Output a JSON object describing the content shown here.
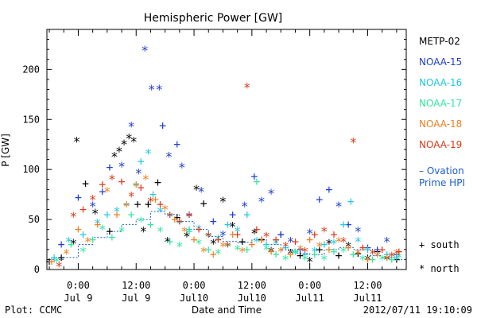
{
  "chart_data": {
    "type": "scatter",
    "title": "Hemispheric Power [GW]",
    "ylabel": "P [GW]",
    "xlabel": "Date and Time",
    "ylim": [
      0,
      240
    ],
    "yticks": [
      0,
      50,
      100,
      150,
      200
    ],
    "xlim_hours": [
      -6.5,
      68
    ],
    "x_ticks": [
      {
        "h": 0,
        "top": "0:00",
        "bottom": "Jul 9"
      },
      {
        "h": 12,
        "top": "12:00",
        "bottom": "Jul 9"
      },
      {
        "h": 24,
        "top": "0:00",
        "bottom": "Jul10"
      },
      {
        "h": 36,
        "top": "12:00",
        "bottom": "Jul10"
      },
      {
        "h": 48,
        "top": "0:00",
        "bottom": "Jul11"
      },
      {
        "h": 60,
        "top": "12:00",
        "bottom": "Jul11"
      }
    ],
    "footer_left": "Plot: CCMC",
    "footer_right": "2012/07/11 19:10:09",
    "legend": {
      "placement": "right",
      "satellites": [
        {
          "name": "METP-02",
          "color": "#000000"
        },
        {
          "name": "NOAA-15",
          "color": "#1f3fd0"
        },
        {
          "name": "NOAA-16",
          "color": "#20c8e0"
        },
        {
          "name": "NOAA-17",
          "color": "#30e8a0"
        },
        {
          "name": "NOAA-18",
          "color": "#f08020"
        },
        {
          "name": "NOAA-19",
          "color": "#e03818"
        }
      ],
      "ovation_label_1": "Ovation",
      "ovation_label_2": "Prime HPI",
      "ovation_color": "#1c5fd0",
      "south_label": "south",
      "north_label": "north"
    },
    "series": [
      {
        "name": "METP-02",
        "points": [
          [
            -6,
            8,
            "+"
          ],
          [
            -3.5,
            12,
            "+"
          ],
          [
            -1,
            28,
            "*"
          ],
          [
            -0.3,
            130,
            "*"
          ],
          [
            1.5,
            86,
            "+"
          ],
          [
            3.5,
            58,
            "*"
          ],
          [
            6.5,
            38,
            "+"
          ],
          [
            7.5,
            115,
            "*"
          ],
          [
            8.5,
            120,
            "*"
          ],
          [
            9.5,
            127,
            "*"
          ],
          [
            10.5,
            133,
            "*"
          ],
          [
            11.5,
            130,
            "*"
          ],
          [
            12.3,
            65,
            "+"
          ],
          [
            13.5,
            40,
            "*"
          ],
          [
            14.5,
            65,
            "+"
          ],
          [
            16.5,
            87,
            "+"
          ],
          [
            18.5,
            30,
            "*"
          ],
          [
            20.5,
            52,
            "+"
          ],
          [
            22.5,
            35,
            "*"
          ],
          [
            24.5,
            82,
            "*"
          ],
          [
            26,
            66,
            "+"
          ],
          [
            28,
            28,
            "*"
          ],
          [
            30,
            70,
            "*"
          ],
          [
            32,
            45,
            "*"
          ],
          [
            34,
            28,
            "+"
          ],
          [
            36.5,
            38,
            "*"
          ],
          [
            38,
            30,
            "+"
          ],
          [
            40,
            20,
            "*"
          ],
          [
            42,
            35,
            "+"
          ],
          [
            44,
            18,
            "*"
          ],
          [
            46,
            14,
            "+"
          ],
          [
            48,
            10,
            "*"
          ],
          [
            50,
            20,
            "+"
          ],
          [
            52,
            28,
            "*"
          ],
          [
            54,
            14,
            "+"
          ],
          [
            56,
            25,
            "*"
          ],
          [
            58,
            16,
            "+"
          ],
          [
            60,
            12,
            "*"
          ],
          [
            62,
            18,
            "+"
          ],
          [
            64,
            12,
            "*"
          ],
          [
            66,
            10,
            "+"
          ]
        ]
      },
      {
        "name": "NOAA-15",
        "points": [
          [
            -3.5,
            25,
            "+"
          ],
          [
            0,
            72,
            "+"
          ],
          [
            3,
            65,
            "*"
          ],
          [
            5,
            78,
            "+"
          ],
          [
            6.5,
            102,
            "+"
          ],
          [
            9,
            105,
            "*"
          ],
          [
            11,
            145,
            "*"
          ],
          [
            12.5,
            98,
            "*"
          ],
          [
            13.8,
            221,
            "*"
          ],
          [
            15.2,
            182,
            "*"
          ],
          [
            16.8,
            182,
            "*"
          ],
          [
            17.5,
            144,
            "+"
          ],
          [
            18.8,
            115,
            "*"
          ],
          [
            20.5,
            125,
            "+"
          ],
          [
            21.5,
            104,
            "*"
          ],
          [
            23,
            55,
            "+"
          ],
          [
            25.5,
            80,
            "*"
          ],
          [
            28,
            48,
            "+"
          ],
          [
            30,
            36,
            "*"
          ],
          [
            32,
            55,
            "+"
          ],
          [
            34.5,
            65,
            "*"
          ],
          [
            36.5,
            93,
            "+"
          ],
          [
            38,
            70,
            "*"
          ],
          [
            40,
            78,
            "*"
          ],
          [
            42,
            35,
            "+"
          ],
          [
            44,
            30,
            "*"
          ],
          [
            46,
            20,
            "+"
          ],
          [
            48,
            38,
            "*"
          ],
          [
            50,
            70,
            "+"
          ],
          [
            52,
            80,
            "+"
          ],
          [
            54,
            65,
            "*"
          ],
          [
            56,
            45,
            "+"
          ],
          [
            58,
            40,
            "*"
          ],
          [
            60,
            22,
            "+"
          ],
          [
            62,
            20,
            "+"
          ],
          [
            64,
            30,
            "*"
          ],
          [
            66,
            15,
            "+"
          ]
        ]
      },
      {
        "name": "NOAA-16",
        "points": [
          [
            -5,
            12,
            "+"
          ],
          [
            -2,
            30,
            "*"
          ],
          [
            1,
            35,
            "+"
          ],
          [
            4,
            48,
            "*"
          ],
          [
            6,
            55,
            "+"
          ],
          [
            8,
            60,
            "*"
          ],
          [
            10,
            65,
            "+"
          ],
          [
            12,
            85,
            "*"
          ],
          [
            13,
            108,
            "+"
          ],
          [
            14.5,
            118,
            "*"
          ],
          [
            15.5,
            75,
            "+"
          ],
          [
            17,
            60,
            "*"
          ],
          [
            19,
            55,
            "+"
          ],
          [
            21,
            48,
            "*"
          ],
          [
            23,
            40,
            "+"
          ],
          [
            25,
            42,
            "*"
          ],
          [
            27,
            35,
            "+"
          ],
          [
            29,
            32,
            "*"
          ],
          [
            31,
            45,
            "+"
          ],
          [
            33,
            40,
            "*"
          ],
          [
            35,
            55,
            "+"
          ],
          [
            37,
            30,
            "*"
          ],
          [
            39,
            25,
            "+"
          ],
          [
            41,
            28,
            "*"
          ],
          [
            43,
            22,
            "+"
          ],
          [
            45,
            18,
            "*"
          ],
          [
            47,
            15,
            "+"
          ],
          [
            49,
            20,
            "*"
          ],
          [
            51,
            25,
            "+"
          ],
          [
            53,
            28,
            "*"
          ],
          [
            55,
            45,
            "+"
          ],
          [
            56.5,
            68,
            "+"
          ],
          [
            58,
            30,
            "*"
          ],
          [
            60,
            20,
            "+"
          ],
          [
            62,
            15,
            "*"
          ],
          [
            64,
            15,
            "+"
          ],
          [
            66,
            12,
            "*"
          ]
        ]
      },
      {
        "name": "NOAA-17",
        "points": [
          [
            -4.5,
            10,
            "*"
          ],
          [
            -1.5,
            25,
            "+"
          ],
          [
            1,
            20,
            "*"
          ],
          [
            3,
            30,
            "+"
          ],
          [
            5,
            42,
            "*"
          ],
          [
            7,
            32,
            "+"
          ],
          [
            9,
            40,
            "*"
          ],
          [
            11,
            55,
            "+"
          ],
          [
            13,
            50,
            "*"
          ],
          [
            15,
            45,
            "+"
          ],
          [
            17,
            40,
            "*"
          ],
          [
            19,
            28,
            "+"
          ],
          [
            21,
            25,
            "*"
          ],
          [
            23,
            38,
            "+"
          ],
          [
            25,
            28,
            "*"
          ],
          [
            27,
            20,
            "+"
          ],
          [
            29,
            18,
            "*"
          ],
          [
            31,
            25,
            "+"
          ],
          [
            33,
            22,
            "*"
          ],
          [
            35,
            20,
            "+"
          ],
          [
            37,
            88,
            "+"
          ],
          [
            39,
            22,
            "*"
          ],
          [
            41,
            15,
            "+"
          ],
          [
            43,
            12,
            "*"
          ],
          [
            45,
            18,
            "+"
          ],
          [
            47,
            12,
            "*"
          ],
          [
            49,
            15,
            "+"
          ],
          [
            51,
            12,
            "*"
          ],
          [
            53,
            18,
            "+"
          ],
          [
            55,
            20,
            "*"
          ],
          [
            57,
            15,
            "+"
          ],
          [
            59,
            12,
            "*"
          ],
          [
            61,
            10,
            "+"
          ],
          [
            63,
            12,
            "*"
          ],
          [
            65,
            10,
            "+"
          ],
          [
            66.5,
            14,
            "*"
          ]
        ]
      },
      {
        "name": "NOAA-18",
        "points": [
          [
            -5.5,
            8,
            "+"
          ],
          [
            -2.5,
            18,
            "*"
          ],
          [
            0,
            40,
            "+"
          ],
          [
            2,
            30,
            "*"
          ],
          [
            4,
            45,
            "+"
          ],
          [
            6,
            80,
            "*"
          ],
          [
            8,
            55,
            "+"
          ],
          [
            10,
            65,
            "*"
          ],
          [
            12,
            85,
            "+"
          ],
          [
            14,
            92,
            "*"
          ],
          [
            16,
            70,
            "+"
          ],
          [
            18,
            62,
            "*"
          ],
          [
            20,
            50,
            "+"
          ],
          [
            22,
            40,
            "*"
          ],
          [
            24,
            30,
            "+"
          ],
          [
            26,
            20,
            "*"
          ],
          [
            28,
            15,
            "+"
          ],
          [
            30,
            25,
            "*"
          ],
          [
            32,
            35,
            "+"
          ],
          [
            34,
            20,
            "*"
          ],
          [
            36,
            25,
            "+"
          ],
          [
            38,
            30,
            "*"
          ],
          [
            40,
            18,
            "+"
          ],
          [
            42,
            20,
            "*"
          ],
          [
            44,
            15,
            "+"
          ],
          [
            46,
            22,
            "*"
          ],
          [
            48,
            30,
            "+"
          ],
          [
            50,
            25,
            "*"
          ],
          [
            52,
            20,
            "+"
          ],
          [
            54,
            30,
            "*"
          ],
          [
            56,
            22,
            "+"
          ],
          [
            58,
            18,
            "*"
          ],
          [
            60,
            10,
            "+"
          ],
          [
            62,
            15,
            "*"
          ],
          [
            64,
            12,
            "+"
          ],
          [
            66,
            18,
            "*"
          ]
        ]
      },
      {
        "name": "NOAA-19",
        "points": [
          [
            -4,
            5,
            "*"
          ],
          [
            -1,
            55,
            "*"
          ],
          [
            1,
            60,
            "+"
          ],
          [
            3,
            72,
            "*"
          ],
          [
            5,
            85,
            "+"
          ],
          [
            7,
            92,
            "*"
          ],
          [
            9,
            88,
            "+"
          ],
          [
            11,
            75,
            "*"
          ],
          [
            13,
            82,
            "+"
          ],
          [
            15,
            70,
            "*"
          ],
          [
            17,
            65,
            "+"
          ],
          [
            19,
            55,
            "*"
          ],
          [
            21,
            48,
            "+"
          ],
          [
            23,
            55,
            "*"
          ],
          [
            25,
            40,
            "+"
          ],
          [
            27,
            35,
            "*"
          ],
          [
            29,
            30,
            "+"
          ],
          [
            31,
            25,
            "*"
          ],
          [
            33,
            35,
            "+"
          ],
          [
            35,
            184,
            "*"
          ],
          [
            37,
            40,
            "+"
          ],
          [
            39,
            35,
            "*"
          ],
          [
            41,
            30,
            "+"
          ],
          [
            43,
            25,
            "*"
          ],
          [
            45,
            28,
            "+"
          ],
          [
            47,
            20,
            "*"
          ],
          [
            49,
            35,
            "+"
          ],
          [
            51,
            40,
            "*"
          ],
          [
            53,
            35,
            "+"
          ],
          [
            55,
            30,
            "*"
          ],
          [
            57,
            129,
            "*"
          ],
          [
            59,
            22,
            "+"
          ],
          [
            61,
            18,
            "*"
          ],
          [
            63,
            20,
            "+"
          ],
          [
            65,
            15,
            "*"
          ],
          [
            66.5,
            18,
            "+"
          ]
        ]
      }
    ],
    "ovation_hpi": [
      [
        -6,
        10
      ],
      [
        -3,
        12
      ],
      [
        0,
        25
      ],
      [
        3,
        32
      ],
      [
        6,
        38
      ],
      [
        9,
        45
      ],
      [
        12,
        50
      ],
      [
        15,
        58
      ],
      [
        18,
        55
      ],
      [
        21,
        48
      ],
      [
        24,
        40
      ],
      [
        27,
        33
      ],
      [
        30,
        28
      ],
      [
        33,
        27
      ],
      [
        36,
        30
      ],
      [
        39,
        25
      ],
      [
        42,
        20
      ],
      [
        45,
        16
      ],
      [
        48,
        15
      ],
      [
        51,
        20
      ],
      [
        54,
        22
      ],
      [
        57,
        20
      ],
      [
        60,
        14
      ],
      [
        63,
        12
      ],
      [
        66,
        10
      ],
      [
        68,
        10
      ]
    ]
  }
}
